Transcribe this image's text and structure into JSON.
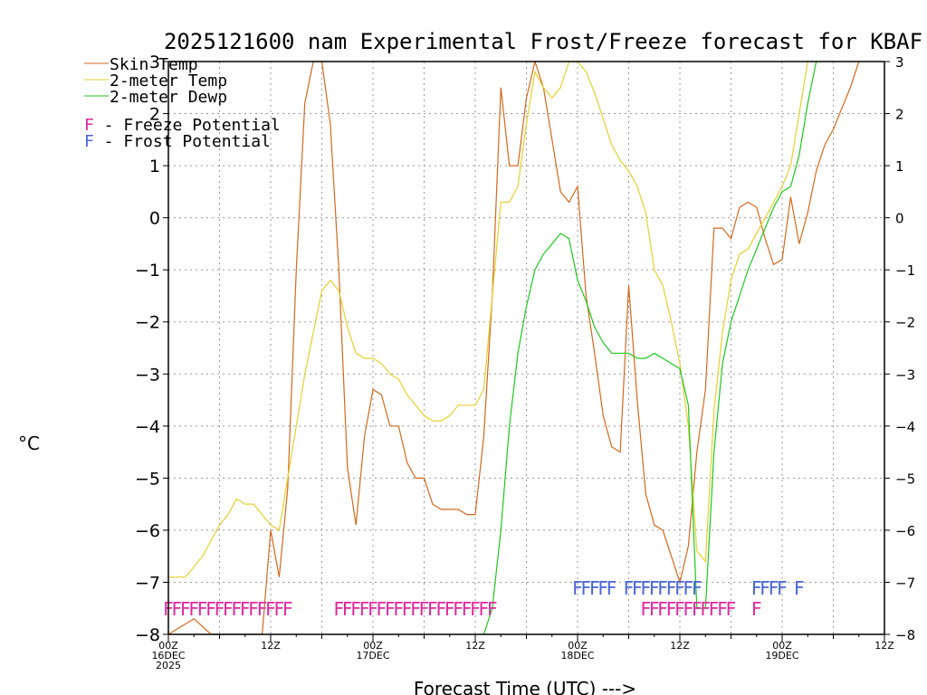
{
  "chart_data": {
    "type": "line",
    "title": "2025121600 nam Experimental Frost/Freeze forecast for KBAF",
    "xlabel": "Forecast Time (UTC) --->",
    "ylabel": "°C",
    "xlim": [
      0,
      84
    ],
    "ylim": [
      -8,
      3
    ],
    "y_ticks": [
      -8,
      -7,
      -6,
      -5,
      -4,
      -3,
      -2,
      -1,
      0,
      1,
      2,
      3
    ],
    "y_tick_labels": [
      "−8",
      "−7",
      "−6",
      "−5",
      "−4",
      "−3",
      "−2",
      "−1",
      "0",
      "1",
      "2",
      "3"
    ],
    "x_ticks": [
      {
        "h": 0,
        "line1": "00Z",
        "line2": "16DEC",
        "line3": "2025"
      },
      {
        "h": 12,
        "line1": "12Z",
        "line2": "",
        "line3": ""
      },
      {
        "h": 24,
        "line1": "00Z",
        "line2": "17DEC",
        "line3": ""
      },
      {
        "h": 36,
        "line1": "12Z",
        "line2": "",
        "line3": ""
      },
      {
        "h": 48,
        "line1": "00Z",
        "line2": "18DEC",
        "line3": ""
      },
      {
        "h": 60,
        "line1": "12Z",
        "line2": "",
        "line3": ""
      },
      {
        "h": 72,
        "line1": "00Z",
        "line2": "19DEC",
        "line3": ""
      },
      {
        "h": 84,
        "line1": "12Z",
        "line2": "",
        "line3": ""
      }
    ],
    "grid": true,
    "legend": {
      "placement": "top-left",
      "entries": [
        {
          "label": "Skin Temp",
          "color": "#d2691e"
        },
        {
          "label": "2-meter Temp",
          "color": "#e6d030"
        },
        {
          "label": "2-meter Dewp",
          "color": "#1ec81e"
        }
      ],
      "markers": [
        {
          "letter": "F",
          "text": " - Freeze Potential",
          "color": "#e0289c"
        },
        {
          "letter": "F",
          "text": " - Frost Potential",
          "color": "#4a64d8"
        }
      ]
    },
    "series": [
      {
        "name": "Skin Temp",
        "color": "#d2691e",
        "points": [
          [
            0,
            -8.0
          ],
          [
            1,
            -7.9
          ],
          [
            3,
            -7.7
          ],
          [
            5,
            -8.0
          ],
          [
            8,
            -8.0
          ],
          [
            10,
            -8.0
          ],
          [
            11,
            -8.0
          ],
          [
            12,
            -6.0
          ],
          [
            13,
            -6.9
          ],
          [
            14,
            -5.2
          ],
          [
            15,
            -1.0
          ],
          [
            16,
            2.2
          ],
          [
            17,
            3.0
          ],
          [
            18,
            3.0
          ],
          [
            19,
            1.8
          ],
          [
            20,
            -1.0
          ],
          [
            21,
            -4.8
          ],
          [
            22,
            -5.9
          ],
          [
            23,
            -4.2
          ],
          [
            24,
            -3.3
          ],
          [
            25,
            -3.4
          ],
          [
            26,
            -4.0
          ],
          [
            27,
            -4.0
          ],
          [
            28,
            -4.7
          ],
          [
            29,
            -5.0
          ],
          [
            30,
            -5.0
          ],
          [
            31,
            -5.5
          ],
          [
            32,
            -5.6
          ],
          [
            33,
            -5.6
          ],
          [
            34,
            -5.6
          ],
          [
            35,
            -5.7
          ],
          [
            36,
            -5.7
          ],
          [
            37,
            -4.2
          ],
          [
            38,
            -1.5
          ],
          [
            39,
            2.5
          ],
          [
            40,
            1.0
          ],
          [
            41,
            1.0
          ],
          [
            42,
            2.3
          ],
          [
            43,
            3.0
          ],
          [
            44,
            2.5
          ],
          [
            45,
            1.5
          ],
          [
            46,
            0.5
          ],
          [
            47,
            0.3
          ],
          [
            48,
            0.6
          ],
          [
            49,
            -1.5
          ],
          [
            50,
            -2.6
          ],
          [
            51,
            -3.8
          ],
          [
            52,
            -4.4
          ],
          [
            53,
            -4.5
          ],
          [
            54,
            -1.3
          ],
          [
            55,
            -3.5
          ],
          [
            56,
            -5.3
          ],
          [
            57,
            -5.9
          ],
          [
            58,
            -6.0
          ],
          [
            59,
            -6.5
          ],
          [
            60,
            -7.0
          ],
          [
            61,
            -6.3
          ],
          [
            62,
            -4.5
          ],
          [
            63,
            -3.3
          ],
          [
            64,
            -0.2
          ],
          [
            65,
            -0.2
          ],
          [
            66,
            -0.4
          ],
          [
            67,
            0.2
          ],
          [
            68,
            0.3
          ],
          [
            69,
            0.2
          ],
          [
            70,
            -0.4
          ],
          [
            71,
            -0.9
          ],
          [
            72,
            -0.8
          ],
          [
            73,
            0.4
          ],
          [
            74,
            -0.5
          ],
          [
            75,
            0.1
          ],
          [
            76,
            0.9
          ],
          [
            77,
            1.4
          ],
          [
            78,
            1.7
          ],
          [
            79,
            2.1
          ],
          [
            80,
            2.5
          ],
          [
            81,
            3.0
          ]
        ]
      },
      {
        "name": "2-meter Temp",
        "color": "#e6d030",
        "points": [
          [
            0,
            -6.9
          ],
          [
            1,
            -6.9
          ],
          [
            2,
            -6.9
          ],
          [
            3,
            -6.7
          ],
          [
            4,
            -6.5
          ],
          [
            5,
            -6.2
          ],
          [
            6,
            -5.9
          ],
          [
            7,
            -5.7
          ],
          [
            8,
            -5.4
          ],
          [
            9,
            -5.5
          ],
          [
            10,
            -5.5
          ],
          [
            11,
            -5.7
          ],
          [
            12,
            -5.9
          ],
          [
            13,
            -6.0
          ],
          [
            14,
            -5.0
          ],
          [
            15,
            -4.0
          ],
          [
            16,
            -3.0
          ],
          [
            17,
            -2.2
          ],
          [
            18,
            -1.4
          ],
          [
            19,
            -1.2
          ],
          [
            20,
            -1.4
          ],
          [
            21,
            -2.1
          ],
          [
            22,
            -2.6
          ],
          [
            23,
            -2.7
          ],
          [
            24,
            -2.7
          ],
          [
            25,
            -2.8
          ],
          [
            26,
            -3.0
          ],
          [
            27,
            -3.1
          ],
          [
            28,
            -3.4
          ],
          [
            29,
            -3.6
          ],
          [
            30,
            -3.8
          ],
          [
            31,
            -3.9
          ],
          [
            32,
            -3.9
          ],
          [
            33,
            -3.8
          ],
          [
            34,
            -3.6
          ],
          [
            35,
            -3.6
          ],
          [
            36,
            -3.6
          ],
          [
            37,
            -3.3
          ],
          [
            38,
            -1.5
          ],
          [
            39,
            0.3
          ],
          [
            40,
            0.3
          ],
          [
            41,
            0.6
          ],
          [
            42,
            1.8
          ],
          [
            43,
            2.8
          ],
          [
            44,
            2.5
          ],
          [
            45,
            2.3
          ],
          [
            46,
            2.5
          ],
          [
            47,
            3.0
          ],
          [
            48,
            3.0
          ],
          [
            49,
            2.8
          ],
          [
            50,
            2.4
          ],
          [
            51,
            1.9
          ],
          [
            52,
            1.4
          ],
          [
            53,
            1.1
          ],
          [
            54,
            0.9
          ],
          [
            55,
            0.6
          ],
          [
            56,
            0.1
          ],
          [
            57,
            -1.0
          ],
          [
            58,
            -1.3
          ],
          [
            59,
            -2.0
          ],
          [
            60,
            -2.8
          ],
          [
            61,
            -4.0
          ],
          [
            62,
            -6.4
          ],
          [
            63,
            -6.6
          ],
          [
            64,
            -3.7
          ],
          [
            65,
            -2.2
          ],
          [
            66,
            -1.2
          ],
          [
            67,
            -0.7
          ],
          [
            68,
            -0.6
          ],
          [
            69,
            -0.3
          ],
          [
            70,
            0.0
          ],
          [
            71,
            0.3
          ],
          [
            72,
            0.6
          ],
          [
            73,
            1.0
          ],
          [
            74,
            2.0
          ],
          [
            75,
            3.0
          ]
        ]
      },
      {
        "name": "2-meter Dewp",
        "color": "#1ec81e",
        "points": [
          [
            37,
            -8.0
          ],
          [
            38,
            -7.5
          ],
          [
            39,
            -6.0
          ],
          [
            40,
            -4.0
          ],
          [
            41,
            -2.6
          ],
          [
            42,
            -1.7
          ],
          [
            43,
            -1.0
          ],
          [
            44,
            -0.7
          ],
          [
            45,
            -0.5
          ],
          [
            46,
            -0.3
          ],
          [
            47,
            -0.4
          ],
          [
            48,
            -1.2
          ],
          [
            49,
            -1.6
          ],
          [
            50,
            -2.1
          ],
          [
            51,
            -2.4
          ],
          [
            52,
            -2.6
          ],
          [
            53,
            -2.6
          ],
          [
            54,
            -2.6
          ],
          [
            55,
            -2.7
          ],
          [
            56,
            -2.7
          ],
          [
            57,
            -2.6
          ],
          [
            58,
            -2.7
          ],
          [
            59,
            -2.8
          ],
          [
            60,
            -2.9
          ],
          [
            61,
            -3.6
          ],
          [
            62,
            -7.5
          ],
          [
            63,
            -7.5
          ],
          [
            64,
            -4.5
          ],
          [
            65,
            -2.8
          ],
          [
            66,
            -2.0
          ],
          [
            67,
            -1.5
          ],
          [
            68,
            -1.0
          ],
          [
            69,
            -0.6
          ],
          [
            70,
            -0.2
          ],
          [
            71,
            0.2
          ],
          [
            72,
            0.5
          ],
          [
            73,
            0.6
          ],
          [
            74,
            1.2
          ],
          [
            75,
            2.2
          ],
          [
            76,
            3.0
          ]
        ]
      }
    ],
    "freeze_potential_hours": [
      0,
      1,
      2,
      3,
      4,
      5,
      6,
      7,
      8,
      9,
      10,
      11,
      12,
      13,
      14,
      20,
      21,
      22,
      23,
      24,
      25,
      26,
      27,
      28,
      29,
      30,
      31,
      32,
      33,
      34,
      35,
      36,
      37,
      38,
      56,
      57,
      58,
      59,
      60,
      61,
      62,
      63,
      64,
      65,
      66,
      69
    ],
    "frost_potential_hours": [
      48,
      49,
      50,
      51,
      52,
      54,
      55,
      56,
      57,
      58,
      59,
      60,
      61,
      62,
      69,
      70,
      71,
      72,
      74
    ]
  }
}
